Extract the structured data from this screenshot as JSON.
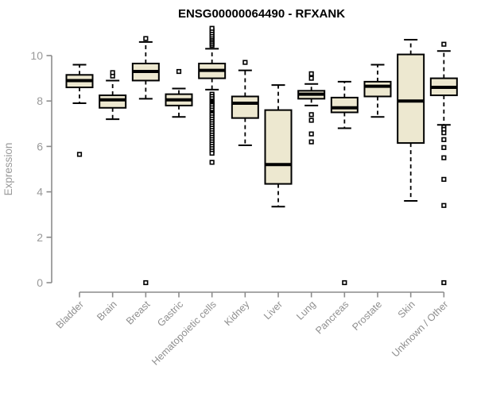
{
  "page": {
    "background": "#ffffff"
  },
  "chart_data": {
    "type": "boxplot",
    "title": "ENSG00000064490 - RFXANK",
    "xlabel": "",
    "ylabel": "Expression",
    "ylim": [
      0,
      11.3
    ],
    "y_ticks": [
      0,
      2,
      4,
      6,
      8,
      10
    ],
    "grid": false,
    "legend": false,
    "categories": [
      "Bladder",
      "Brain",
      "Breast",
      "Gastric",
      "Hematopoietic cells",
      "Kidney",
      "Liver",
      "Lung",
      "Pancreas",
      "Prostate",
      "Skin",
      "Unknown / Other"
    ],
    "series": [
      {
        "name": "Bladder",
        "whisker_low": 7.9,
        "q1": 8.6,
        "median": 8.9,
        "q3": 9.15,
        "whisker_high": 9.6,
        "outliers": [
          5.65
        ]
      },
      {
        "name": "Brain",
        "whisker_low": 7.2,
        "q1": 7.7,
        "median": 8.05,
        "q3": 8.25,
        "whisker_high": 8.9,
        "outliers": [
          9.1,
          9.25
        ]
      },
      {
        "name": "Breast",
        "whisker_low": 8.1,
        "q1": 8.9,
        "median": 9.3,
        "q3": 9.65,
        "whisker_high": 10.6,
        "outliers": [
          10.75,
          0
        ]
      },
      {
        "name": "Gastric",
        "whisker_low": 7.3,
        "q1": 7.8,
        "median": 8.05,
        "q3": 8.3,
        "whisker_high": 8.55,
        "outliers": [
          9.3
        ]
      },
      {
        "name": "Hematopoietic cells",
        "whisker_low": 8.5,
        "q1": 9.0,
        "median": 9.35,
        "q3": 9.65,
        "whisker_high": 10.3,
        "outliers": [
          10.45,
          10.52,
          10.6,
          10.68,
          10.75,
          10.82,
          10.9,
          11.0,
          11.1,
          11.2,
          8.3,
          8.2,
          8.1,
          8.0,
          7.95,
          7.9,
          7.85,
          7.8,
          7.7,
          7.6,
          7.5,
          7.45,
          7.4,
          7.3,
          7.2,
          7.1,
          7.0,
          6.9,
          6.8,
          6.7,
          6.6,
          6.5,
          6.4,
          6.3,
          6.2,
          6.1,
          6.0,
          5.9,
          5.8,
          5.7,
          5.3
        ]
      },
      {
        "name": "Kidney",
        "whisker_low": 6.05,
        "q1": 7.25,
        "median": 7.9,
        "q3": 8.2,
        "whisker_high": 9.35,
        "outliers": [
          9.7
        ]
      },
      {
        "name": "Liver",
        "whisker_low": 3.35,
        "q1": 4.35,
        "median": 5.2,
        "q3": 7.6,
        "whisker_high": 8.7,
        "outliers": []
      },
      {
        "name": "Lung",
        "whisker_low": 7.8,
        "q1": 8.1,
        "median": 8.3,
        "q3": 8.45,
        "whisker_high": 8.75,
        "outliers": [
          9.2,
          9.0,
          7.4,
          7.15,
          6.55,
          6.2
        ]
      },
      {
        "name": "Pancreas",
        "whisker_low": 6.8,
        "q1": 7.5,
        "median": 7.7,
        "q3": 8.15,
        "whisker_high": 8.85,
        "outliers": [
          0
        ]
      },
      {
        "name": "Prostate",
        "whisker_low": 7.3,
        "q1": 8.2,
        "median": 8.65,
        "q3": 8.85,
        "whisker_high": 9.6,
        "outliers": []
      },
      {
        "name": "Skin",
        "whisker_low": 3.6,
        "q1": 6.15,
        "median": 8.0,
        "q3": 10.05,
        "whisker_high": 10.7,
        "outliers": []
      },
      {
        "name": "Unknown / Other",
        "whisker_low": 6.95,
        "q1": 8.25,
        "median": 8.6,
        "q3": 9.0,
        "whisker_high": 10.2,
        "outliers": [
          10.5,
          6.85,
          6.75,
          6.6,
          6.3,
          5.95,
          5.5,
          4.55,
          3.4,
          0
        ]
      }
    ],
    "colors": {
      "box_fill": "#EDE8D0",
      "box_border": "#000000",
      "median": "#000000",
      "whisker": "#000000",
      "outlier_stroke": "#000000",
      "outlier_fill": "#FFFFFF",
      "axis": "#8C8C8C",
      "tick_text": "#999999",
      "category_text": "#8F8F8F",
      "title_text": "#000000"
    }
  }
}
